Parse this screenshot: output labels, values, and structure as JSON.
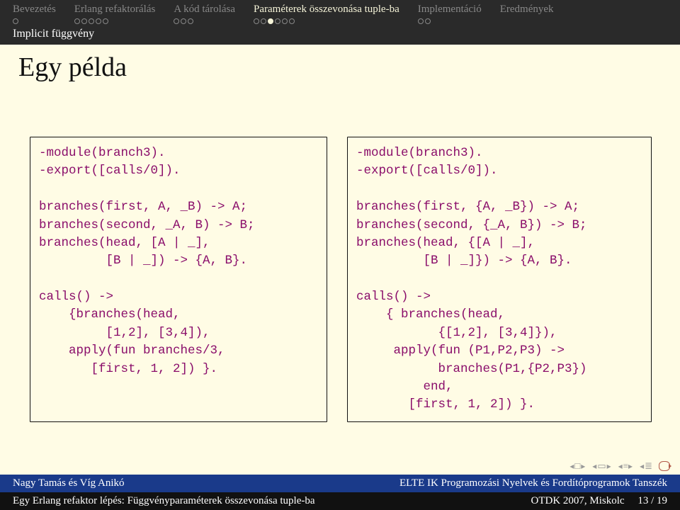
{
  "nav": {
    "items": [
      {
        "label": "Bevezetés",
        "active": false,
        "dots": 1,
        "activeDot": -1
      },
      {
        "label": "Erlang refaktorálás",
        "active": false,
        "dots": 5,
        "activeDot": -1
      },
      {
        "label": "A kód tárolása",
        "active": false,
        "dots": 3,
        "activeDot": -1
      },
      {
        "label": "Paraméterek összevonása tuple-ba",
        "active": true,
        "dots": 6,
        "activeDot": 2
      },
      {
        "label": "Implementáció",
        "active": false,
        "dots": 2,
        "activeDot": -1
      },
      {
        "label": "Eredmények",
        "active": false,
        "dots": 0,
        "activeDot": -1
      }
    ]
  },
  "subtitle": "Implicit függvény",
  "title": "Egy példa",
  "code": {
    "left": "-module(branch3).\n-export([calls/0]).\n\nbranches(first, A, _B) -> A;\nbranches(second, _A, B) -> B;\nbranches(head, [A | _],\n         [B | _]) -> {A, B}.\n\ncalls() ->\n    {branches(head,\n         [1,2], [3,4]),\n    apply(fun branches/3,\n       [first, 1, 2]) }.",
    "right": "-module(branch3).\n-export([calls/0]).\n\nbranches(first, {A, _B}) -> A;\nbranches(second, {_A, B}) -> B;\nbranches(head, {[A | _],\n         [B | _]}) -> {A, B}.\n\ncalls() ->\n    { branches(head,\n           {[1,2], [3,4]}),\n     apply(fun (P1,P2,P3) ->\n           branches(P1,{P2,P3})\n         end,\n       [first, 1, 2]) }."
  },
  "footer": {
    "authors": "Nagy Tamás és Víg Anikó",
    "dept": "ELTE IK Programozási Nyelvek és Fordítóprogramok Tanszék",
    "talk": "Egy Erlang refaktor lépés: Függvényparaméterek összevonása tuple-ba",
    "venue": "OTDK 2007, Miskolc",
    "page": "13 / 19"
  },
  "colors": {
    "background": "#fffce5",
    "topbar": "#2a2a2a",
    "nav_inactive": "#888888",
    "nav_active": "#f5f3d8",
    "code_text": "#8a0d6a",
    "footer_blue": "#1a3a8a",
    "footer_black": "#111111",
    "loop_icon": "#b35a4a"
  }
}
